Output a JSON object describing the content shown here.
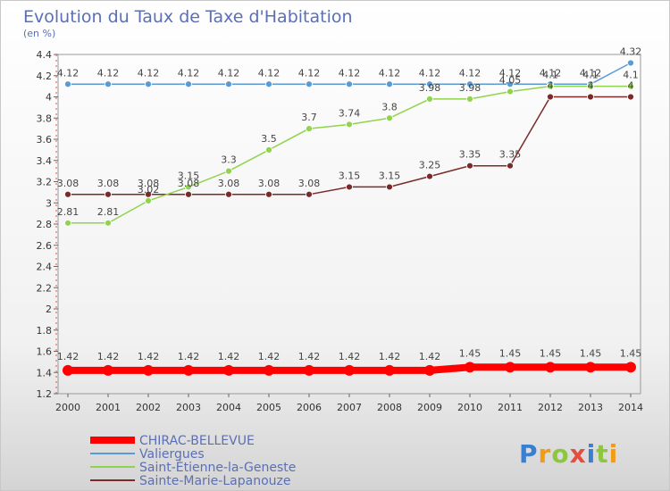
{
  "chart_data": {
    "type": "line",
    "title": "Evolution du Taux de Taxe d'Habitation",
    "ylabel": "(en %)",
    "xlabel": "",
    "x": [
      "2000",
      "2001",
      "2002",
      "2003",
      "2004",
      "2005",
      "2006",
      "2007",
      "2008",
      "2009",
      "2010",
      "2011",
      "2012",
      "2013",
      "2014"
    ],
    "ylim": [
      1.2,
      4.4
    ],
    "yticks": [
      "1.2",
      "1.4",
      "1.6",
      "1.8",
      "2",
      "2.2",
      "2.4",
      "2.6",
      "2.8",
      "3",
      "3.2",
      "3.4",
      "3.6",
      "3.8",
      "4",
      "4.2",
      "4.4"
    ],
    "grid": false,
    "legend_position": "bottom-left",
    "series": [
      {
        "name": "CHIRAC-BELLEVUE",
        "color": "#ff0000",
        "emphasis": true,
        "values": [
          1.42,
          1.42,
          1.42,
          1.42,
          1.42,
          1.42,
          1.42,
          1.42,
          1.42,
          1.42,
          1.45,
          1.45,
          1.45,
          1.45,
          1.45
        ],
        "labels": [
          "1.42",
          "1.42",
          "1.42",
          "1.42",
          "1.42",
          "1.42",
          "1.42",
          "1.42",
          "1.42",
          "1.42",
          "1.45",
          "1.45",
          "1.45",
          "1.45",
          "1.45"
        ]
      },
      {
        "name": "Valiergues",
        "color": "#5b9bd5",
        "emphasis": false,
        "values": [
          4.12,
          4.12,
          4.12,
          4.12,
          4.12,
          4.12,
          4.12,
          4.12,
          4.12,
          4.12,
          4.12,
          4.12,
          4.12,
          4.12,
          4.32
        ],
        "labels": [
          "4.12",
          "4.12",
          "4.12",
          "4.12",
          "4.12",
          "4.12",
          "4.12",
          "4.12",
          "4.12",
          "4.12",
          "4.12",
          "4.12",
          "4.12",
          "4.12",
          "4.32"
        ]
      },
      {
        "name": "Saint-Étienne-la-Geneste",
        "color": "#8fd44b",
        "emphasis": false,
        "values": [
          2.81,
          2.81,
          3.02,
          3.15,
          3.3,
          3.5,
          3.7,
          3.74,
          3.8,
          3.98,
          3.98,
          4.05,
          4.1,
          4.1,
          4.1
        ],
        "labels": [
          "2.81",
          "2.81",
          "3.02",
          "3.15",
          "3.3",
          "3.5",
          "3.7",
          "3.74",
          "3.8",
          "3.98",
          "3.98",
          "4.05",
          "4.1",
          "4.1",
          "4.1"
        ]
      },
      {
        "name": "Sainte-Marie-Lapanouze",
        "color": "#7b2a2a",
        "emphasis": false,
        "values": [
          3.08,
          3.08,
          3.08,
          3.08,
          3.08,
          3.08,
          3.08,
          3.15,
          3.15,
          3.25,
          3.35,
          3.35,
          4,
          4,
          4
        ],
        "labels": [
          "3.08",
          "3.08",
          "3.08",
          "3.08",
          "3.08",
          "3.08",
          "3.08",
          "3.15",
          "3.15",
          "3.25",
          "3.35",
          "3.35",
          "4",
          "4",
          "4"
        ]
      }
    ]
  },
  "brand": {
    "letters": [
      "P",
      "r",
      "o",
      "x",
      "i",
      "t",
      "i"
    ],
    "colors": [
      "#3a7fd0",
      "#f39c12",
      "#8dc63f",
      "#e74c3c",
      "#3a7fd0",
      "#8dc63f",
      "#f39c12"
    ]
  }
}
